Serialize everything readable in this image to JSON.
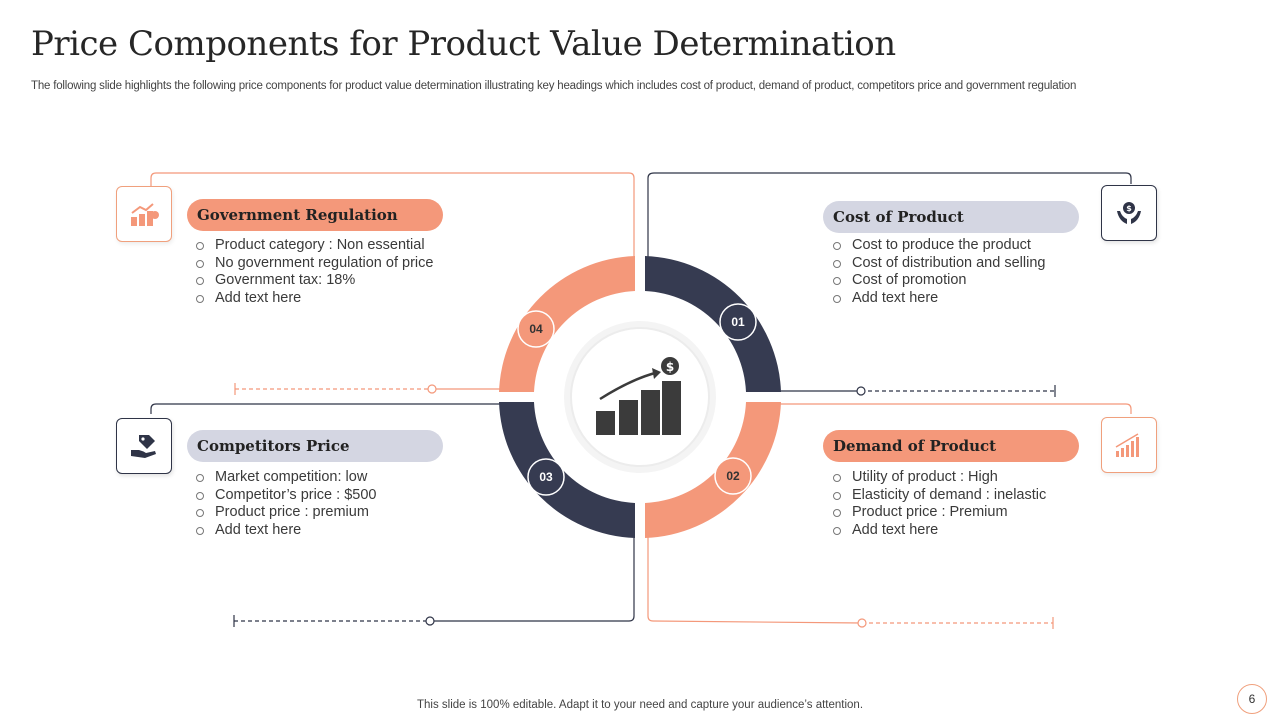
{
  "title": "Price Components for Product Value Determination",
  "subtitle": "The following slide highlights the following price components for product value determination illustrating key headings which includes cost of product, demand of product, competitors price and government regulation",
  "colors": {
    "orange": "#f4987a",
    "navy": "#363b51",
    "grey_pill": "#d4d6e2"
  },
  "segments": [
    {
      "number": "01",
      "color": "navy"
    },
    {
      "number": "02",
      "color": "orange"
    },
    {
      "number": "03",
      "color": "navy"
    },
    {
      "number": "04",
      "color": "orange"
    }
  ],
  "components": {
    "government": {
      "heading": "Government Regulation",
      "icon": "growth-chart-dollar-icon",
      "bullets": [
        "Product category : Non essential",
        "No government regulation of price",
        "Government tax: 18%",
        "Add text here"
      ]
    },
    "cost": {
      "heading": "Cost of Product",
      "icon": "hand-holding-money-icon",
      "bullets": [
        "Cost to produce the product",
        "Cost of distribution and selling",
        "Cost of promotion",
        "Add text here"
      ]
    },
    "competitors": {
      "heading": "Competitors Price",
      "icon": "hand-price-tag-icon",
      "bullets": [
        "Market competition: low",
        "Competitor’s price : $500",
        "Product price : premium",
        "Add text here"
      ]
    },
    "demand": {
      "heading": "Demand of Product",
      "icon": "rising-bar-chart-icon",
      "bullets": [
        "Utility of product : High",
        "Elasticity of demand : inelastic",
        "Product price : Premium",
        "Add text here"
      ]
    }
  },
  "center_icon": "bar-chart-dollar-growth-icon",
  "footer": "This slide is 100% editable. Adapt it to your need and capture your audience’s attention.",
  "page_number": "6"
}
